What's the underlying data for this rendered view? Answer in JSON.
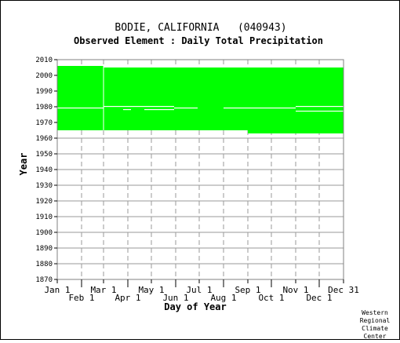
{
  "chart_data": {
    "type": "scatter",
    "title": "BODIE, CALIFORNIA   (040943)",
    "subtitle": "Observed Element : Daily Total Precipitation",
    "xlabel": "Day of Year",
    "ylabel": "Year",
    "xlim": [
      1,
      366
    ],
    "ylim": [
      1870,
      2010
    ],
    "y_ticks": [
      1870,
      1880,
      1890,
      1900,
      1910,
      1920,
      1930,
      1940,
      1950,
      1960,
      1970,
      1980,
      1990,
      2000,
      2010
    ],
    "x_ticks_top": [
      {
        "label": "Jan 1",
        "day": 1
      },
      {
        "label": "Mar 1",
        "day": 60
      },
      {
        "label": "May 1",
        "day": 121
      },
      {
        "label": "Jul 1",
        "day": 182
      },
      {
        "label": "Sep 1",
        "day": 244
      },
      {
        "label": "Nov 1",
        "day": 305
      },
      {
        "label": "Dec 31",
        "day": 366
      }
    ],
    "x_ticks_bottom": [
      {
        "label": "Feb 1",
        "day": 32
      },
      {
        "label": "Apr 1",
        "day": 91
      },
      {
        "label": "Jun 1",
        "day": 152
      },
      {
        "label": "Aug 1",
        "day": 213
      },
      {
        "label": "Oct 1",
        "day": 274
      },
      {
        "label": "Dec 1",
        "day": 335
      }
    ],
    "grid": true,
    "data_color": "#00ff00",
    "coverage_blocks": [
      {
        "day_start": 1,
        "day_end": 60,
        "year_start": 1965,
        "year_end": 2005
      },
      {
        "day_start": 60,
        "day_end": 244,
        "year_start": 1965,
        "year_end": 2004
      },
      {
        "day_start": 244,
        "day_end": 366,
        "year_start": 1963,
        "year_end": 2004
      }
    ],
    "missing_rows": [
      {
        "day_start": 1,
        "day_end": 60,
        "year": 1979
      },
      {
        "day_start": 60,
        "day_end": 112,
        "year": 1980
      },
      {
        "day_start": 85,
        "day_end": 95,
        "year": 1978
      },
      {
        "day_start": 112,
        "day_end": 150,
        "year": 1980
      },
      {
        "day_start": 112,
        "day_end": 150,
        "year": 1978
      },
      {
        "day_start": 150,
        "day_end": 180,
        "year": 1979
      },
      {
        "day_start": 213,
        "day_end": 305,
        "year": 1979
      },
      {
        "day_start": 305,
        "day_end": 320,
        "year": 1977
      },
      {
        "day_start": 305,
        "day_end": 366,
        "year": 1980
      },
      {
        "day_start": 320,
        "day_end": 366,
        "year": 1977
      }
    ],
    "missing_columns": [
      {
        "day": 60,
        "year_start": 1965,
        "year_end": 2005
      }
    ]
  },
  "credit": [
    "Western",
    "Regional",
    "Climate",
    "Center"
  ]
}
